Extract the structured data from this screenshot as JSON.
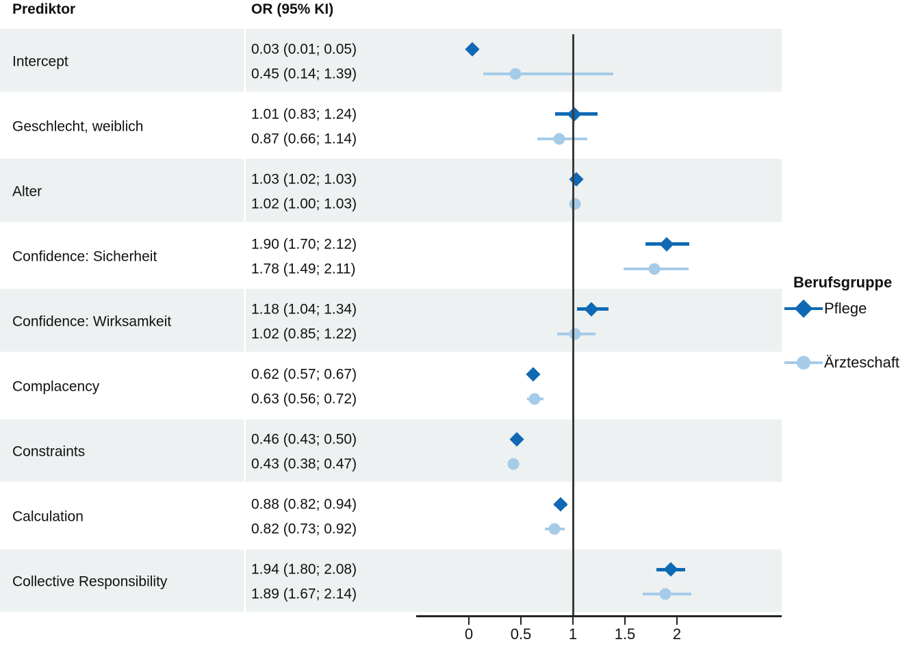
{
  "columns": {
    "predictor": "Prediktor",
    "or_ci": "OR (95% KI)"
  },
  "legend": {
    "title": "Berufsgruppe",
    "items": [
      {
        "label": "Pflege",
        "marker": "diamond-icon",
        "color": "#0f69b4"
      },
      {
        "label": "Ärzteschaft",
        "marker": "circle-icon",
        "color": "#a6cbe8"
      }
    ]
  },
  "chart_data": {
    "type": "forest",
    "title": "",
    "xlabel": "",
    "x_axis": {
      "ticks": [
        0,
        0.5,
        1,
        1.5,
        2
      ],
      "tick_labels": [
        "0",
        "0.5",
        "1",
        "1.5",
        "2"
      ],
      "range": [
        -0.5,
        3.0
      ],
      "reference_line": 1
    },
    "groups": [
      {
        "name": "Pflege",
        "marker": "diamond",
        "color": "#0f69b4"
      },
      {
        "name": "Ärzteschaft",
        "marker": "circle",
        "color": "#a6cbe8"
      }
    ],
    "rows": [
      {
        "predictor": "Intercept",
        "shaded": true,
        "estimates": [
          {
            "group": "Pflege",
            "text": "0.03 (0.01; 0.05)",
            "or": 0.03,
            "ci_low": 0.01,
            "ci_high": 0.05
          },
          {
            "group": "Ärzteschaft",
            "text": "0.45 (0.14; 1.39)",
            "or": 0.45,
            "ci_low": 0.14,
            "ci_high": 1.39
          }
        ]
      },
      {
        "predictor": "Geschlecht, weiblich",
        "shaded": false,
        "estimates": [
          {
            "group": "Pflege",
            "text": "1.01 (0.83; 1.24)",
            "or": 1.01,
            "ci_low": 0.83,
            "ci_high": 1.24
          },
          {
            "group": "Ärzteschaft",
            "text": "0.87 (0.66; 1.14)",
            "or": 0.87,
            "ci_low": 0.66,
            "ci_high": 1.14
          }
        ]
      },
      {
        "predictor": "Alter",
        "shaded": true,
        "estimates": [
          {
            "group": "Pflege",
            "text": "1.03 (1.02; 1.03)",
            "or": 1.03,
            "ci_low": 1.02,
            "ci_high": 1.03
          },
          {
            "group": "Ärzteschaft",
            "text": "1.02 (1.00; 1.03)",
            "or": 1.02,
            "ci_low": 1.0,
            "ci_high": 1.03
          }
        ]
      },
      {
        "predictor": "Confidence: Sicherheit",
        "shaded": false,
        "estimates": [
          {
            "group": "Pflege",
            "text": "1.90 (1.70; 2.12)",
            "or": 1.9,
            "ci_low": 1.7,
            "ci_high": 2.12
          },
          {
            "group": "Ärzteschaft",
            "text": "1.78 (1.49; 2.11)",
            "or": 1.78,
            "ci_low": 1.49,
            "ci_high": 2.11
          }
        ]
      },
      {
        "predictor": "Confidence: Wirksamkeit",
        "shaded": true,
        "estimates": [
          {
            "group": "Pflege",
            "text": "1.18 (1.04; 1.34)",
            "or": 1.18,
            "ci_low": 1.04,
            "ci_high": 1.34
          },
          {
            "group": "Ärzteschaft",
            "text": "1.02 (0.85; 1.22)",
            "or": 1.02,
            "ci_low": 0.85,
            "ci_high": 1.22
          }
        ]
      },
      {
        "predictor": "Complacency",
        "shaded": false,
        "estimates": [
          {
            "group": "Pflege",
            "text": "0.62 (0.57; 0.67)",
            "or": 0.62,
            "ci_low": 0.57,
            "ci_high": 0.67
          },
          {
            "group": "Ärzteschaft",
            "text": "0.63 (0.56; 0.72)",
            "or": 0.63,
            "ci_low": 0.56,
            "ci_high": 0.72
          }
        ]
      },
      {
        "predictor": "Constraints",
        "shaded": true,
        "estimates": [
          {
            "group": "Pflege",
            "text": "0.46 (0.43; 0.50)",
            "or": 0.46,
            "ci_low": 0.43,
            "ci_high": 0.5
          },
          {
            "group": "Ärzteschaft",
            "text": "0.43 (0.38; 0.47)",
            "or": 0.43,
            "ci_low": 0.38,
            "ci_high": 0.47
          }
        ]
      },
      {
        "predictor": "Calculation",
        "shaded": false,
        "estimates": [
          {
            "group": "Pflege",
            "text": "0.88 (0.82; 0.94)",
            "or": 0.88,
            "ci_low": 0.82,
            "ci_high": 0.94
          },
          {
            "group": "Ärzteschaft",
            "text": "0.82 (0.73; 0.92)",
            "or": 0.82,
            "ci_low": 0.73,
            "ci_high": 0.92
          }
        ]
      },
      {
        "predictor": "Collective Responsibility",
        "shaded": true,
        "estimates": [
          {
            "group": "Pflege",
            "text": "1.94 (1.80; 2.08)",
            "or": 1.94,
            "ci_low": 1.8,
            "ci_high": 2.08
          },
          {
            "group": "Ärzteschaft",
            "text": "1.89 (1.67; 2.14)",
            "or": 1.89,
            "ci_low": 1.67,
            "ci_high": 2.14
          }
        ]
      }
    ]
  },
  "style": {
    "band_color": "#edf1f1",
    "pflege_color": "#0f69b4",
    "aerzteschaft_color": "#a6cbe8",
    "ref_line_color": "#3a3a3a",
    "axis_color": "#222222",
    "text_color": "#111111"
  }
}
